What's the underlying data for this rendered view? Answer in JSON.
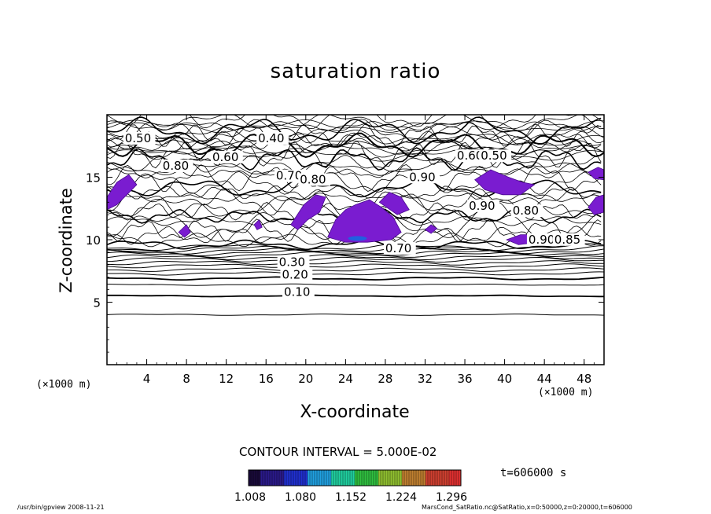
{
  "chart_data": {
    "type": "contour",
    "title": "saturation ratio",
    "xlabel": "X-coordinate",
    "ylabel": "Z-coordinate",
    "x_unit": "(×1000 m)",
    "y_unit": "(×1000 m)",
    "xlim": [
      0,
      50
    ],
    "ylim": [
      0,
      20
    ],
    "x_ticks": [
      4,
      8,
      12,
      16,
      20,
      24,
      28,
      32,
      36,
      40,
      44,
      48
    ],
    "y_ticks": [
      5,
      10,
      15
    ],
    "contour_interval_label": "CONTOUR INTERVAL = 5.000E-02",
    "contour_labels": [
      {
        "text": "0.10",
        "x": 17.8,
        "z": 5.5
      },
      {
        "text": "0.20",
        "x": 17.6,
        "z": 6.9
      },
      {
        "text": "0.30",
        "x": 17.3,
        "z": 7.9
      },
      {
        "text": "0.40",
        "x": 15.2,
        "z": 17.8
      },
      {
        "text": "0.50",
        "x": 1.8,
        "z": 17.8
      },
      {
        "text": "0.60",
        "x": 10.6,
        "z": 16.3
      },
      {
        "text": "0.80",
        "x": 5.6,
        "z": 15.6
      },
      {
        "text": "0.70",
        "x": 17.0,
        "z": 14.8
      },
      {
        "text": "0.80",
        "x": 19.4,
        "z": 14.5
      },
      {
        "text": "0.90",
        "x": 30.4,
        "z": 14.7
      },
      {
        "text": "0.90",
        "x": 36.4,
        "z": 12.4
      },
      {
        "text": "0.80",
        "x": 40.8,
        "z": 12.0
      },
      {
        "text": "0.60",
        "x": 35.2,
        "z": 16.4
      },
      {
        "text": "0.50",
        "x": 37.6,
        "z": 16.4
      },
      {
        "text": "0.90",
        "x": 42.4,
        "z": 9.7
      },
      {
        "text": "0.85",
        "x": 45.0,
        "z": 9.7
      },
      {
        "text": "0.70",
        "x": 28.0,
        "z": 9.0
      }
    ],
    "filled_regions_label": "saturation ratio > 1 (shaded)",
    "colorbar": {
      "tick_labels": [
        "1.008",
        "1.080",
        "1.152",
        "1.224",
        "1.296"
      ],
      "colors": [
        "#1a0a3a",
        "#2a1a8a",
        "#2030d0",
        "#20a0e0",
        "#20d0a0",
        "#30c040",
        "#90c030",
        "#c08030",
        "#d04030",
        "#e03030"
      ]
    },
    "time_label": "t=606000 s"
  },
  "footer": {
    "left": "/usr/bin/gpview   2008-11-21",
    "right": "MarsCond_SatRatio.nc@SatRatio,x=0:50000,z=0:20000,t=606000"
  }
}
